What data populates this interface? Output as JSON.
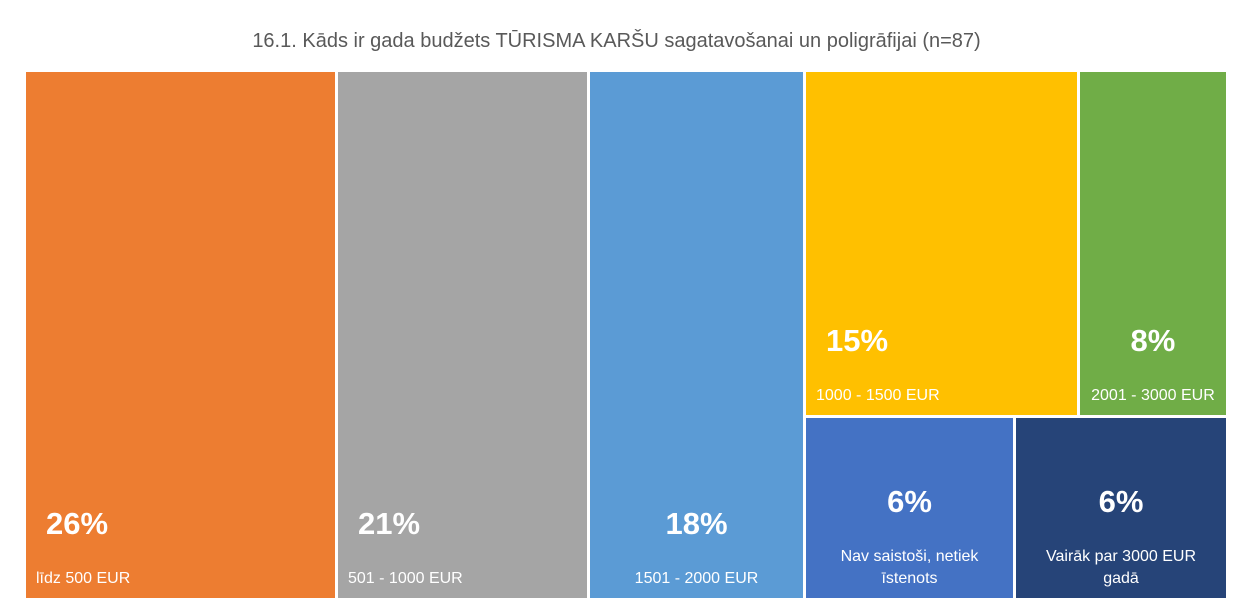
{
  "chart_data": {
    "type": "treemap",
    "title": "16.1. Kāds ir gada budžets TŪRISMA KARŠU sagatavošanai un poligrāfijai (n=87)",
    "categories": [
      "līdz 500 EUR",
      "501 - 1000 EUR",
      "1501 - 2000 EUR",
      "1000 - 1500 EUR",
      "2001 - 3000 EUR",
      "Nav saistoši, netiek īstenots",
      "Vairāk par 3000 EUR gadā"
    ],
    "values": [
      26,
      21,
      18,
      15,
      8,
      6,
      6
    ],
    "value_labels": [
      "26%",
      "21%",
      "18%",
      "15%",
      "8%",
      "6%",
      "6%"
    ],
    "colors": [
      "#ed7d31",
      "#a5a5a5",
      "#5b9bd5",
      "#ffc000",
      "#70ad47",
      "#4472c4",
      "#264478"
    ]
  }
}
